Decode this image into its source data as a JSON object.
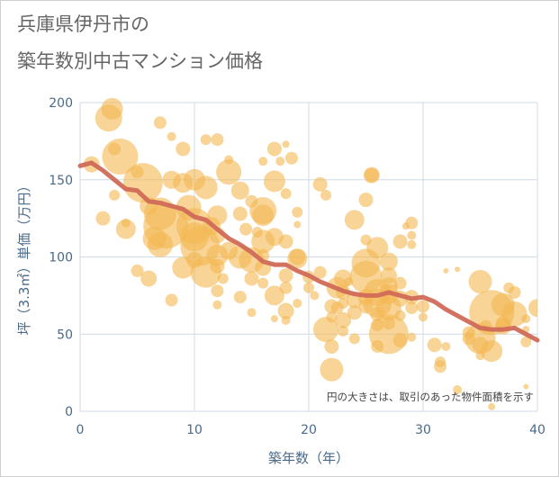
{
  "title_line1": "兵庫県伊丹市の",
  "title_line2": "築年数別中古マンション価格",
  "colors": {
    "bubble_fill": "#f3b851",
    "bubble_opacity": 0.6,
    "trend_line": "#d06a58",
    "grid": "#cfdbe6",
    "axis_text": "#4a6a8a"
  },
  "chart_data": {
    "type": "scatter",
    "xlabel": "築年数（年）",
    "ylabel": "坪（3.3㎡）単価（万円）",
    "xlim": [
      0,
      40
    ],
    "ylim": [
      0,
      200
    ],
    "x_ticks": [
      "0",
      "10",
      "20",
      "30",
      "40"
    ],
    "y_ticks": [
      "0",
      "50",
      "100",
      "150",
      "200"
    ],
    "grid": true,
    "note": "円の大きさは、取引のあった物件面積を示す",
    "points": [
      [
        1,
        160,
        9
      ],
      [
        2,
        125,
        8
      ],
      [
        2.5,
        190,
        15
      ],
      [
        2.8,
        196,
        12
      ],
      [
        3,
        170,
        7
      ],
      [
        3,
        140,
        6
      ],
      [
        3.5,
        165,
        20
      ],
      [
        4,
        118,
        11
      ],
      [
        4,
        122,
        5
      ],
      [
        5,
        155,
        7
      ],
      [
        5,
        91,
        7
      ],
      [
        5.5,
        148,
        22
      ],
      [
        6,
        86,
        9
      ],
      [
        6,
        133,
        10
      ],
      [
        6.5,
        112,
        13
      ],
      [
        7,
        187,
        7
      ],
      [
        7,
        108,
        14
      ],
      [
        7,
        128,
        18
      ],
      [
        7.5,
        120,
        25
      ],
      [
        8,
        150,
        10
      ],
      [
        8,
        72,
        7
      ],
      [
        8,
        178,
        5
      ],
      [
        9,
        170,
        8
      ],
      [
        9,
        148,
        11
      ],
      [
        9,
        93,
        12
      ],
      [
        9.5,
        132,
        14
      ],
      [
        10,
        150,
        12
      ],
      [
        10,
        120,
        20
      ],
      [
        10,
        113,
        16
      ],
      [
        10,
        98,
        9
      ],
      [
        10.5,
        107,
        22
      ],
      [
        11,
        90,
        17
      ],
      [
        11,
        145,
        13
      ],
      [
        11,
        176,
        6
      ],
      [
        11.5,
        120,
        10
      ],
      [
        12,
        176,
        7
      ],
      [
        12,
        127,
        11
      ],
      [
        12,
        114,
        9
      ],
      [
        12,
        101,
        12
      ],
      [
        12,
        94,
        8
      ],
      [
        12,
        78,
        7
      ],
      [
        12,
        69,
        5
      ],
      [
        12.5,
        86,
        6
      ],
      [
        13,
        155,
        14
      ],
      [
        13,
        104,
        10
      ],
      [
        13,
        163,
        5
      ],
      [
        14,
        143,
        10
      ],
      [
        14,
        128,
        8
      ],
      [
        14,
        100,
        13
      ],
      [
        14,
        74,
        7
      ],
      [
        14.5,
        118,
        7
      ],
      [
        15,
        136,
        7
      ],
      [
        15,
        98,
        14
      ],
      [
        15,
        86,
        8
      ],
      [
        15,
        64,
        5
      ],
      [
        15.5,
        116,
        6
      ],
      [
        16,
        162,
        5
      ],
      [
        16,
        130,
        15
      ],
      [
        16,
        127,
        12
      ],
      [
        16,
        110,
        13
      ],
      [
        16,
        101,
        7
      ],
      [
        16,
        93,
        9
      ],
      [
        16,
        83,
        6
      ],
      [
        17,
        170,
        8
      ],
      [
        17,
        149,
        12
      ],
      [
        17,
        113,
        10
      ],
      [
        17,
        75,
        11
      ],
      [
        17,
        60,
        4
      ],
      [
        17.5,
        162,
        5
      ],
      [
        18,
        173,
        4
      ],
      [
        18,
        141,
        6
      ],
      [
        18,
        110,
        8
      ],
      [
        18,
        88,
        8
      ],
      [
        18,
        80,
        7
      ],
      [
        18,
        65,
        9
      ],
      [
        18,
        59,
        5
      ],
      [
        18.5,
        164,
        7
      ],
      [
        19,
        99,
        11
      ],
      [
        19,
        100,
        9
      ],
      [
        19,
        129,
        6
      ],
      [
        19,
        121,
        4
      ],
      [
        19,
        70,
        5
      ],
      [
        20,
        87,
        7
      ],
      [
        20,
        80,
        6
      ],
      [
        20.5,
        75,
        5
      ],
      [
        21,
        147,
        8
      ],
      [
        21,
        90,
        7
      ],
      [
        21.5,
        140,
        6
      ],
      [
        21.5,
        53,
        14
      ],
      [
        22,
        27,
        13
      ],
      [
        22,
        42,
        8
      ],
      [
        22,
        68,
        8
      ],
      [
        22,
        61,
        6
      ],
      [
        22.5,
        80,
        12
      ],
      [
        22.5,
        67,
        7
      ],
      [
        23,
        86,
        10
      ],
      [
        23,
        77,
        8
      ],
      [
        23,
        70,
        6
      ],
      [
        23,
        59,
        9
      ],
      [
        23,
        52,
        6
      ],
      [
        23.5,
        84,
        5
      ],
      [
        24,
        124,
        11
      ],
      [
        24,
        72,
        9
      ],
      [
        24,
        64,
        8
      ],
      [
        24,
        47,
        6
      ],
      [
        25,
        137,
        8
      ],
      [
        25,
        111,
        6
      ],
      [
        25,
        96,
        16
      ],
      [
        25,
        87,
        18
      ],
      [
        25,
        74,
        9
      ],
      [
        25,
        68,
        8
      ],
      [
        25.5,
        153,
        9
      ],
      [
        25.5,
        153,
        8
      ],
      [
        26,
        106,
        12
      ],
      [
        26,
        77,
        15
      ],
      [
        26,
        70,
        16
      ],
      [
        26,
        63,
        8
      ],
      [
        26,
        56,
        7
      ],
      [
        26,
        42,
        7
      ],
      [
        27,
        97,
        10
      ],
      [
        27,
        88,
        9
      ],
      [
        27,
        81,
        10
      ],
      [
        27,
        76,
        11
      ],
      [
        27,
        67,
        14
      ],
      [
        27,
        57,
        7
      ],
      [
        27,
        50,
        22
      ],
      [
        28,
        110,
        8
      ],
      [
        28,
        83,
        7
      ],
      [
        28,
        73,
        9
      ],
      [
        28,
        62,
        6
      ],
      [
        28,
        46,
        8
      ],
      [
        28.5,
        120,
        4
      ],
      [
        29,
        122,
        7
      ],
      [
        29,
        114,
        5
      ],
      [
        29,
        108,
        5
      ],
      [
        29,
        74,
        8
      ],
      [
        29,
        67,
        7
      ],
      [
        29,
        48,
        5
      ],
      [
        30,
        68,
        7
      ],
      [
        30,
        61,
        5
      ],
      [
        31,
        43,
        8
      ],
      [
        31.5,
        32,
        6
      ],
      [
        31.5,
        29,
        7
      ],
      [
        32,
        42,
        5
      ],
      [
        32,
        91,
        3
      ],
      [
        33,
        92,
        3
      ],
      [
        33,
        14,
        5
      ],
      [
        34,
        47,
        7
      ],
      [
        34,
        51,
        7
      ],
      [
        35,
        84,
        13
      ],
      [
        35,
        47,
        17
      ],
      [
        35,
        43,
        9
      ],
      [
        35,
        36,
        5
      ],
      [
        35.5,
        55,
        7
      ],
      [
        36,
        64,
        25
      ],
      [
        36,
        39,
        12
      ],
      [
        36,
        3,
        4
      ],
      [
        37,
        57,
        8
      ],
      [
        37,
        55,
        9
      ],
      [
        37,
        69,
        13
      ],
      [
        37.5,
        80,
        6
      ],
      [
        38,
        63,
        14
      ],
      [
        38,
        77,
        7
      ],
      [
        39,
        45,
        6
      ],
      [
        39,
        53,
        4
      ],
      [
        39,
        60,
        5
      ],
      [
        39,
        16,
        3
      ],
      [
        40,
        67,
        10
      ]
    ],
    "trend": {
      "name": "",
      "x": [
        0,
        1,
        2,
        3,
        4,
        5,
        6,
        7,
        8,
        9,
        10,
        11,
        12,
        13,
        14,
        15,
        16,
        17,
        18,
        19,
        20,
        21,
        22,
        23,
        24,
        25,
        26,
        27,
        28,
        29,
        30,
        31,
        32,
        33,
        34,
        35,
        36,
        37,
        38,
        39,
        40
      ],
      "y": [
        159,
        161,
        156,
        150,
        144,
        143,
        136,
        135,
        133,
        131,
        126,
        124,
        118,
        112,
        108,
        103,
        97,
        95,
        95,
        91,
        88,
        84,
        81,
        78,
        76,
        75,
        75,
        77,
        75,
        73,
        74,
        71,
        66,
        62,
        58,
        54,
        53,
        53,
        54,
        50,
        46
      ]
    }
  }
}
